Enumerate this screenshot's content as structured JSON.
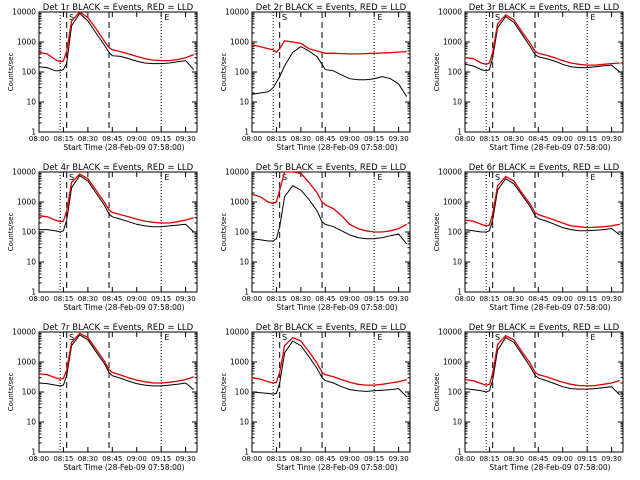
{
  "figure": {
    "xlabel": "Start Time (28-Feb-09 07:58:00)",
    "ylabel": "Counts/sec",
    "colors": {
      "events": "#000000",
      "lld": "#e00000"
    }
  },
  "chart_data": [
    {
      "type": "line",
      "title": "Det 1r BLACK = Events, RED = LLD",
      "marker_labels": [
        "S",
        "E"
      ],
      "x_ticks": [
        "08:00",
        "08:15",
        "08:30",
        "08:45",
        "09:00",
        "09:15",
        "09:30"
      ],
      "y_ticks": [
        "1",
        "10",
        "100",
        "1000",
        "10000"
      ],
      "ylim": [
        1,
        10000
      ],
      "yscale": "log",
      "x": [
        "08:00",
        "08:05",
        "08:10",
        "08:13",
        "08:15",
        "08:17",
        "08:20",
        "08:25",
        "08:30",
        "08:35",
        "08:40",
        "08:43",
        "08:45",
        "08:50",
        "08:55",
        "09:00",
        "09:05",
        "09:10",
        "09:15",
        "09:20",
        "09:25",
        "09:30",
        "09:35"
      ],
      "series": [
        {
          "name": "Events",
          "values": [
            150,
            140,
            110,
            110,
            120,
            200,
            3500,
            9000,
            5000,
            2000,
            800,
            450,
            350,
            330,
            280,
            230,
            200,
            190,
            190,
            200,
            220,
            240,
            120
          ]
        },
        {
          "name": "LLD",
          "values": [
            450,
            400,
            260,
            220,
            230,
            500,
            5000,
            10000,
            6500,
            2800,
            1100,
            650,
            550,
            480,
            400,
            330,
            280,
            250,
            240,
            240,
            260,
            300,
            380
          ]
        }
      ]
    },
    {
      "type": "line",
      "title": "Det 2r BLACK = Events, RED = LLD",
      "marker_labels": [
        "S",
        "E"
      ],
      "x_ticks": [
        "08:00",
        "08:15",
        "08:30",
        "08:45",
        "09:00",
        "09:15",
        "09:30"
      ],
      "y_ticks": [
        "1",
        "10",
        "100",
        "1000",
        "10000"
      ],
      "ylim": [
        1,
        10000
      ],
      "yscale": "log",
      "x": [
        "08:00",
        "08:05",
        "08:10",
        "08:13",
        "08:15",
        "08:17",
        "08:20",
        "08:25",
        "08:30",
        "08:35",
        "08:40",
        "08:43",
        "08:45",
        "08:50",
        "08:55",
        "09:00",
        "09:05",
        "09:10",
        "09:15",
        "09:20",
        "09:25",
        "09:30",
        "09:35"
      ],
      "series": [
        {
          "name": "Events",
          "values": [
            18,
            20,
            22,
            30,
            45,
            70,
            160,
            450,
            700,
            500,
            320,
            180,
            120,
            110,
            80,
            60,
            55,
            55,
            60,
            70,
            60,
            40,
            15
          ]
        },
        {
          "name": "LLD",
          "values": [
            800,
            700,
            600,
            550,
            450,
            600,
            1100,
            1000,
            900,
            600,
            500,
            450,
            420,
            420,
            410,
            400,
            400,
            410,
            420,
            430,
            440,
            460,
            480
          ]
        }
      ]
    },
    {
      "type": "line",
      "title": "Det 3r BLACK = Events, RED = LLD",
      "marker_labels": [
        "S",
        "E"
      ],
      "x_ticks": [
        "08:00",
        "08:15",
        "08:30",
        "08:45",
        "09:00",
        "09:15",
        "09:30"
      ],
      "y_ticks": [
        "1",
        "10",
        "100",
        "1000",
        "10000"
      ],
      "ylim": [
        1,
        10000
      ],
      "yscale": "log",
      "x": [
        "08:00",
        "08:05",
        "08:10",
        "08:13",
        "08:15",
        "08:17",
        "08:20",
        "08:25",
        "08:30",
        "08:35",
        "08:40",
        "08:43",
        "08:45",
        "08:50",
        "08:55",
        "09:00",
        "09:05",
        "09:10",
        "09:15",
        "09:20",
        "09:25",
        "09:30",
        "09:35"
      ],
      "series": [
        {
          "name": "Events",
          "values": [
            180,
            160,
            120,
            110,
            120,
            300,
            3000,
            7000,
            4500,
            1800,
            700,
            380,
            320,
            280,
            230,
            180,
            150,
            140,
            140,
            150,
            160,
            170,
            100
          ]
        },
        {
          "name": "LLD",
          "values": [
            300,
            280,
            200,
            180,
            200,
            450,
            4000,
            8000,
            5500,
            2200,
            900,
            500,
            420,
            360,
            300,
            240,
            200,
            180,
            170,
            170,
            180,
            190,
            200
          ]
        }
      ]
    },
    {
      "type": "line",
      "title": "Det 4r BLACK = Events, RED = LLD",
      "marker_labels": [
        "S",
        "E"
      ],
      "x_ticks": [
        "08:00",
        "08:15",
        "08:30",
        "08:45",
        "09:00",
        "09:15",
        "09:30"
      ],
      "y_ticks": [
        "1",
        "10",
        "100",
        "1000",
        "10000"
      ],
      "ylim": [
        1,
        10000
      ],
      "yscale": "log",
      "x": [
        "08:00",
        "08:05",
        "08:10",
        "08:13",
        "08:15",
        "08:17",
        "08:20",
        "08:25",
        "08:30",
        "08:35",
        "08:40",
        "08:43",
        "08:45",
        "08:50",
        "08:55",
        "09:00",
        "09:05",
        "09:10",
        "09:15",
        "09:20",
        "09:25",
        "09:30",
        "09:35"
      ],
      "series": [
        {
          "name": "Events",
          "values": [
            120,
            120,
            110,
            100,
            110,
            250,
            3000,
            7500,
            5000,
            2000,
            800,
            400,
            320,
            270,
            220,
            180,
            160,
            150,
            150,
            160,
            170,
            180,
            100
          ]
        },
        {
          "name": "LLD",
          "values": [
            350,
            320,
            250,
            220,
            230,
            500,
            4500,
            8500,
            6000,
            2500,
            1000,
            550,
            450,
            380,
            320,
            270,
            230,
            210,
            200,
            200,
            220,
            250,
            300
          ]
        }
      ]
    },
    {
      "type": "line",
      "title": "Det 5r BLACK = Events, RED = LLD",
      "marker_labels": [
        "S",
        "E"
      ],
      "x_ticks": [
        "08:00",
        "08:15",
        "08:30",
        "08:45",
        "09:00",
        "09:15",
        "09:30"
      ],
      "y_ticks": [
        "1",
        "10",
        "100",
        "1000",
        "10000"
      ],
      "ylim": [
        1,
        10000
      ],
      "yscale": "log",
      "x": [
        "08:00",
        "08:05",
        "08:10",
        "08:13",
        "08:15",
        "08:17",
        "08:20",
        "08:25",
        "08:30",
        "08:35",
        "08:40",
        "08:43",
        "08:45",
        "08:50",
        "08:55",
        "09:00",
        "09:05",
        "09:10",
        "09:15",
        "09:20",
        "09:25",
        "09:30",
        "09:35"
      ],
      "series": [
        {
          "name": "Events",
          "values": [
            60,
            55,
            50,
            50,
            60,
            150,
            1500,
            3500,
            2500,
            1200,
            500,
            220,
            180,
            150,
            110,
            80,
            65,
            60,
            60,
            65,
            75,
            85,
            40
          ]
        },
        {
          "name": "LLD",
          "values": [
            1800,
            1500,
            1000,
            900,
            1000,
            2500,
            10000,
            10000,
            9000,
            4500,
            2000,
            1000,
            800,
            600,
            350,
            180,
            130,
            110,
            100,
            100,
            110,
            130,
            180
          ]
        }
      ]
    },
    {
      "type": "line",
      "title": "Det 6r BLACK = Events, RED = LLD",
      "marker_labels": [
        "S",
        "E"
      ],
      "x_ticks": [
        "08:00",
        "08:15",
        "08:30",
        "08:45",
        "09:00",
        "09:15",
        "09:30"
      ],
      "y_ticks": [
        "1",
        "10",
        "100",
        "1000",
        "10000"
      ],
      "ylim": [
        1,
        10000
      ],
      "yscale": "log",
      "x": [
        "08:00",
        "08:05",
        "08:10",
        "08:13",
        "08:15",
        "08:17",
        "08:20",
        "08:25",
        "08:30",
        "08:35",
        "08:40",
        "08:43",
        "08:45",
        "08:50",
        "08:55",
        "09:00",
        "09:05",
        "09:10",
        "09:15",
        "09:20",
        "09:25",
        "09:30",
        "09:35"
      ],
      "series": [
        {
          "name": "Events",
          "values": [
            120,
            110,
            100,
            100,
            110,
            250,
            2500,
            6000,
            4000,
            1700,
            700,
            350,
            280,
            230,
            180,
            140,
            120,
            110,
            110,
            115,
            120,
            130,
            80
          ]
        },
        {
          "name": "LLD",
          "values": [
            250,
            230,
            180,
            160,
            170,
            400,
            3500,
            7000,
            5000,
            2000,
            850,
            450,
            380,
            310,
            250,
            200,
            160,
            150,
            140,
            145,
            150,
            160,
            180
          ]
        }
      ]
    },
    {
      "type": "line",
      "title": "Det 7r BLACK = Events, RED = LLD",
      "marker_labels": [
        "S",
        "E"
      ],
      "x_ticks": [
        "08:00",
        "08:15",
        "08:30",
        "08:45",
        "09:00",
        "09:15",
        "09:30"
      ],
      "y_ticks": [
        "1",
        "10",
        "100",
        "1000",
        "10000"
      ],
      "ylim": [
        1,
        10000
      ],
      "yscale": "log",
      "x": [
        "08:00",
        "08:05",
        "08:10",
        "08:13",
        "08:15",
        "08:17",
        "08:20",
        "08:25",
        "08:30",
        "08:35",
        "08:40",
        "08:43",
        "08:45",
        "08:50",
        "08:55",
        "09:00",
        "09:05",
        "09:10",
        "09:15",
        "09:20",
        "09:25",
        "09:30",
        "09:35"
      ],
      "series": [
        {
          "name": "Events",
          "values": [
            200,
            190,
            170,
            160,
            170,
            350,
            3500,
            8000,
            5500,
            2200,
            900,
            450,
            350,
            290,
            230,
            190,
            170,
            160,
            160,
            170,
            180,
            200,
            120
          ]
        },
        {
          "name": "LLD",
          "values": [
            400,
            380,
            300,
            270,
            280,
            550,
            4500,
            9000,
            6500,
            2700,
            1100,
            550,
            450,
            370,
            300,
            250,
            220,
            200,
            200,
            210,
            230,
            260,
            320
          ]
        }
      ]
    },
    {
      "type": "line",
      "title": "Det 8r BLACK = Events, RED = LLD",
      "marker_labels": [
        "S",
        "E"
      ],
      "x_ticks": [
        "08:00",
        "08:15",
        "08:30",
        "08:45",
        "09:00",
        "09:15",
        "09:30"
      ],
      "y_ticks": [
        "1",
        "10",
        "100",
        "1000",
        "10000"
      ],
      "ylim": [
        1,
        10000
      ],
      "yscale": "log",
      "x": [
        "08:00",
        "08:05",
        "08:10",
        "08:13",
        "08:15",
        "08:17",
        "08:20",
        "08:25",
        "08:30",
        "08:35",
        "08:40",
        "08:43",
        "08:45",
        "08:50",
        "08:55",
        "09:00",
        "09:05",
        "09:10",
        "09:15",
        "09:20",
        "09:25",
        "09:30",
        "09:35"
      ],
      "series": [
        {
          "name": "Events",
          "values": [
            100,
            95,
            90,
            85,
            90,
            200,
            2000,
            5000,
            3500,
            1500,
            600,
            300,
            240,
            200,
            150,
            120,
            110,
            105,
            110,
            115,
            120,
            130,
            70
          ]
        },
        {
          "name": "LLD",
          "values": [
            300,
            270,
            220,
            200,
            210,
            450,
            3500,
            6500,
            5000,
            2200,
            900,
            450,
            380,
            320,
            260,
            210,
            180,
            170,
            170,
            180,
            200,
            220,
            260
          ]
        }
      ]
    },
    {
      "type": "line",
      "title": "Det 9r BLACK = Events, RED = LLD",
      "marker_labels": [
        "S",
        "E"
      ],
      "x_ticks": [
        "08:00",
        "08:15",
        "08:30",
        "08:45",
        "09:00",
        "09:15",
        "09:30"
      ],
      "y_ticks": [
        "1",
        "10",
        "100",
        "1000",
        "10000"
      ],
      "ylim": [
        1,
        10000
      ],
      "yscale": "log",
      "x": [
        "08:00",
        "08:05",
        "08:10",
        "08:13",
        "08:15",
        "08:17",
        "08:20",
        "08:25",
        "08:30",
        "08:35",
        "08:40",
        "08:43",
        "08:45",
        "08:50",
        "08:55",
        "09:00",
        "09:05",
        "09:10",
        "09:15",
        "09:20",
        "09:25",
        "09:30",
        "09:35"
      ],
      "series": [
        {
          "name": "Events",
          "values": [
            130,
            120,
            110,
            100,
            110,
            250,
            2500,
            6500,
            4500,
            1800,
            700,
            360,
            290,
            240,
            190,
            150,
            130,
            125,
            125,
            130,
            140,
            150,
            80
          ]
        },
        {
          "name": "LLD",
          "values": [
            260,
            240,
            190,
            170,
            180,
            420,
            3800,
            7500,
            5500,
            2200,
            900,
            460,
            380,
            320,
            260,
            210,
            180,
            165,
            160,
            165,
            180,
            200,
            240
          ]
        }
      ]
    }
  ]
}
